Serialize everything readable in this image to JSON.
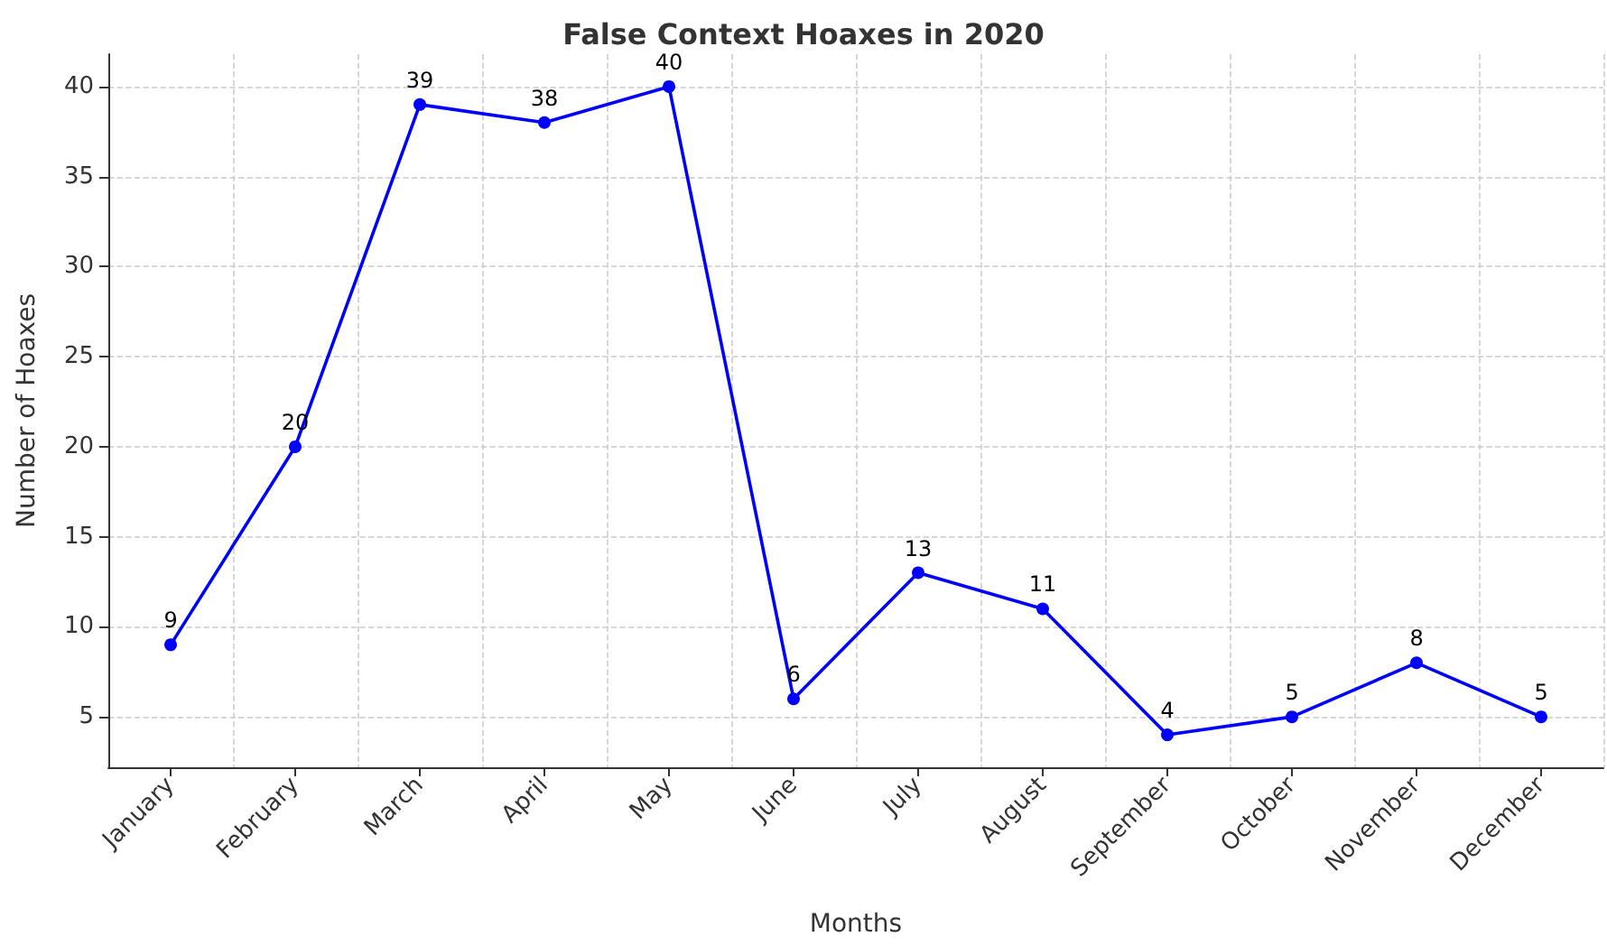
{
  "chart_data": {
    "type": "line",
    "title": "False Context Hoaxes in 2020",
    "xlabel": "Months",
    "ylabel": "Number of Hoaxes",
    "categories": [
      "January",
      "February",
      "March",
      "April",
      "May",
      "June",
      "July",
      "August",
      "September",
      "October",
      "November",
      "December"
    ],
    "series": [
      {
        "color": "#0000ff",
        "values": [
          9,
          20,
          39,
          38,
          40,
          6,
          13,
          11,
          4,
          5,
          8,
          5
        ]
      }
    ],
    "ylim": [
      2.2,
      41.8
    ],
    "yticks": [
      5,
      10,
      15,
      20,
      25,
      30,
      35,
      40
    ],
    "grid": true,
    "marker": "circle",
    "line_style": "solid",
    "data_labels": true
  }
}
